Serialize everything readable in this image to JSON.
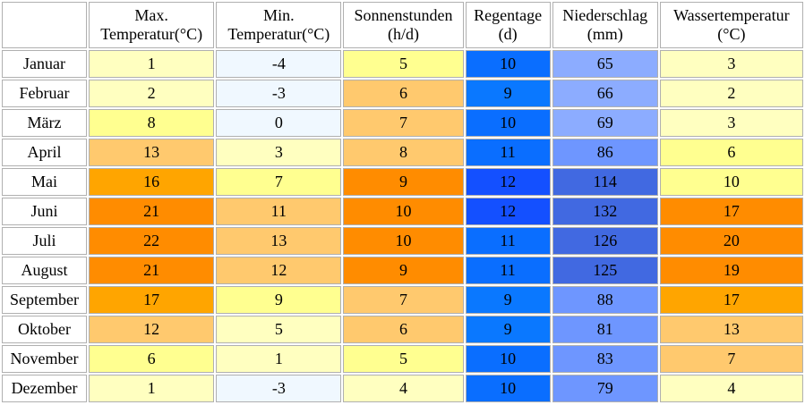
{
  "headers": [
    "",
    "Max.\nTemperatur(°C)",
    "Min.\nTemperatur(°C)",
    "Sonnenstunden\n(h/d)",
    "Regentage\n(d)",
    "Niederschlag\n(mm)",
    "Wassertemperatur\n(°C)"
  ],
  "rows": [
    {
      "month": "Januar",
      "values": [
        "1",
        "-4",
        "5",
        "10",
        "65",
        "3"
      ],
      "colors": [
        "#ffffc0",
        "#f0f8ff",
        "#ffff90",
        "#0a6eff",
        "#8cacff",
        "#ffffc0"
      ]
    },
    {
      "month": "Februar",
      "values": [
        "2",
        "-3",
        "6",
        "9",
        "66",
        "2"
      ],
      "colors": [
        "#ffffc0",
        "#f0f8ff",
        "#ffc96e",
        "#0a78ff",
        "#8cacff",
        "#ffffc0"
      ]
    },
    {
      "month": "März",
      "values": [
        "8",
        "0",
        "7",
        "10",
        "69",
        "3"
      ],
      "colors": [
        "#ffff90",
        "#f0f8ff",
        "#ffc96e",
        "#0a6eff",
        "#8cacff",
        "#ffffc0"
      ]
    },
    {
      "month": "April",
      "values": [
        "13",
        "3",
        "8",
        "11",
        "86",
        "6"
      ],
      "colors": [
        "#ffc96e",
        "#ffffc0",
        "#ffc96e",
        "#0a6eff",
        "#6e96ff",
        "#ffff90"
      ]
    },
    {
      "month": "Mai",
      "values": [
        "16",
        "7",
        "9",
        "12",
        "114",
        "10"
      ],
      "colors": [
        "#ffa500",
        "#ffff90",
        "#ff8c00",
        "#1450ff",
        "#4169e1",
        "#ffff90"
      ]
    },
    {
      "month": "Juni",
      "values": [
        "21",
        "11",
        "10",
        "12",
        "132",
        "17"
      ],
      "colors": [
        "#ff8c00",
        "#ffc96e",
        "#ff8c00",
        "#1450ff",
        "#4169e1",
        "#ff8c00"
      ]
    },
    {
      "month": "Juli",
      "values": [
        "22",
        "13",
        "10",
        "11",
        "126",
        "20"
      ],
      "colors": [
        "#ff8c00",
        "#ffc96e",
        "#ff8c00",
        "#0a6eff",
        "#4169e1",
        "#ff8c00"
      ]
    },
    {
      "month": "August",
      "values": [
        "21",
        "12",
        "9",
        "11",
        "125",
        "19"
      ],
      "colors": [
        "#ff8c00",
        "#ffc96e",
        "#ff8c00",
        "#0a6eff",
        "#4169e1",
        "#ff8c00"
      ]
    },
    {
      "month": "September",
      "values": [
        "17",
        "9",
        "7",
        "9",
        "88",
        "17"
      ],
      "colors": [
        "#ffa500",
        "#ffff90",
        "#ffc96e",
        "#0a78ff",
        "#6e96ff",
        "#ffa500"
      ]
    },
    {
      "month": "Oktober",
      "values": [
        "12",
        "5",
        "6",
        "9",
        "81",
        "13"
      ],
      "colors": [
        "#ffc96e",
        "#ffffc0",
        "#ffc96e",
        "#0a78ff",
        "#6e96ff",
        "#ffc96e"
      ]
    },
    {
      "month": "November",
      "values": [
        "6",
        "1",
        "5",
        "10",
        "83",
        "7"
      ],
      "colors": [
        "#ffff90",
        "#ffffc0",
        "#ffff90",
        "#0a6eff",
        "#6e96ff",
        "#ffc96e"
      ]
    },
    {
      "month": "Dezember",
      "values": [
        "1",
        "-3",
        "4",
        "10",
        "79",
        "4"
      ],
      "colors": [
        "#ffffc0",
        "#f0f8ff",
        "#ffffc0",
        "#0a6eff",
        "#6e96ff",
        "#ffffc0"
      ]
    }
  ]
}
